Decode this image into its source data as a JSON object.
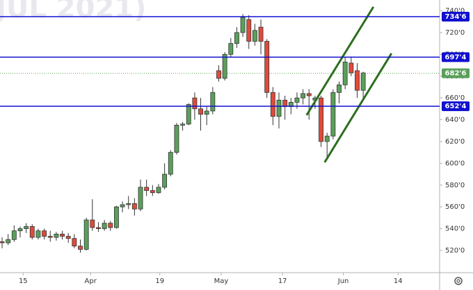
{
  "chart_data": {
    "type": "candlestick",
    "watermark": "JUL 2021)",
    "x": [
      0,
      1,
      2,
      3,
      4,
      5,
      6,
      7,
      8,
      9,
      10,
      11,
      12,
      13,
      14,
      15,
      16,
      17,
      18,
      19,
      20,
      21,
      22,
      23,
      24,
      25,
      26,
      27,
      28,
      29,
      30,
      31,
      32,
      33,
      34,
      35,
      36,
      37,
      38,
      39,
      40,
      41,
      42,
      43,
      44,
      45,
      46,
      47,
      48,
      49,
      50,
      51,
      52,
      53,
      54,
      55,
      56,
      57,
      58,
      59,
      60
    ],
    "open": [
      528,
      527,
      530,
      538,
      540,
      542,
      532,
      538,
      533,
      532,
      535,
      533,
      531,
      524,
      521,
      548,
      541,
      540,
      545,
      541,
      560,
      562,
      563,
      558,
      578,
      575,
      573,
      578,
      590,
      610,
      635,
      636,
      660,
      650,
      645,
      648,
      685,
      678,
      700,
      710,
      720,
      732,
      712,
      725,
      712,
      665,
      643,
      658,
      652,
      656,
      660,
      664,
      658,
      660,
      620,
      625,
      665,
      672,
      692,
      685,
      667
    ],
    "high": [
      532,
      535,
      543,
      542,
      545,
      544,
      540,
      540,
      538,
      537,
      538,
      536,
      535,
      530,
      550,
      567,
      546,
      548,
      547,
      561,
      565,
      570,
      568,
      585,
      585,
      580,
      581,
      600,
      612,
      637,
      638,
      655,
      665,
      660,
      652,
      670,
      690,
      702,
      715,
      725,
      737,
      736,
      728,
      732,
      714,
      670,
      665,
      662,
      660,
      665,
      668,
      668,
      662,
      662,
      628,
      668,
      675,
      697,
      698,
      692,
      684
    ],
    "low": [
      522,
      525,
      528,
      532,
      536,
      530,
      530,
      530,
      528,
      529,
      530,
      527,
      522,
      518,
      520,
      538,
      537,
      538,
      538,
      540,
      555,
      558,
      552,
      556,
      570,
      570,
      572,
      576,
      588,
      608,
      630,
      635,
      640,
      630,
      635,
      645,
      675,
      676,
      697,
      706,
      716,
      705,
      708,
      700,
      660,
      635,
      632,
      640,
      645,
      650,
      654,
      640,
      650,
      615,
      605,
      622,
      655,
      668,
      680,
      660,
      658
    ],
    "close": [
      527,
      530,
      538,
      540,
      542,
      532,
      538,
      533,
      532,
      535,
      533,
      531,
      524,
      521,
      548,
      541,
      540,
      545,
      541,
      560,
      562,
      563,
      558,
      578,
      575,
      573,
      578,
      590,
      610,
      635,
      636,
      654,
      650,
      645,
      648,
      665,
      678,
      700,
      710,
      720,
      734,
      712,
      722,
      712,
      665,
      643,
      658,
      652,
      656,
      660,
      664,
      662,
      660,
      620,
      625,
      665,
      672,
      693,
      683,
      667,
      683
    ],
    "up_color": "#5aa05a",
    "down_color": "#e04a3a",
    "ylim": [
      499.6,
      749.9
    ],
    "yticks": [
      {
        "value": 520,
        "label": "520'0"
      },
      {
        "value": 540,
        "label": "540'0"
      },
      {
        "value": 560,
        "label": "560'0"
      },
      {
        "value": 580,
        "label": "580'0"
      },
      {
        "value": 600,
        "label": "600'0"
      },
      {
        "value": 620,
        "label": "620'0"
      },
      {
        "value": 640,
        "label": "640'0"
      },
      {
        "value": 660,
        "label": "660'0"
      },
      {
        "value": 680,
        "label": "680'0"
      },
      {
        "value": 700,
        "label": "700'0"
      },
      {
        "value": 720,
        "label": "720'0"
      },
      {
        "value": 740,
        "label": "740'0"
      }
    ],
    "xlim": [
      -0.35,
      72.7
    ],
    "xticks": [
      {
        "value": 3.5,
        "label": "15"
      },
      {
        "value": 14.7,
        "label": "Apr"
      },
      {
        "value": 26.2,
        "label": "19"
      },
      {
        "value": 36.4,
        "label": "May"
      },
      {
        "value": 46.6,
        "label": "17"
      },
      {
        "value": 56.7,
        "label": "Jun"
      },
      {
        "value": 65.8,
        "label": "14"
      }
    ],
    "levels": [
      {
        "value": 734.6,
        "label": "734'6",
        "color": "#1010d0",
        "style": "solid"
      },
      {
        "value": 697.4,
        "label": "697'4",
        "color": "#1010d0",
        "style": "solid"
      },
      {
        "value": 652.4,
        "label": "652'4",
        "color": "#1010d0",
        "style": "solid"
      },
      {
        "value": 682.6,
        "label": "682'6",
        "color": "#5aa05a",
        "style": "dotted"
      }
    ],
    "trendlines": [
      {
        "x": [
          50.6,
          61.7
        ],
        "y": [
          644.2,
          743.6
        ],
        "color": "#2d6e1e"
      },
      {
        "x": [
          53.6,
          64.7
        ],
        "y": [
          600.9,
          700.9
        ],
        "color": "#2d6e1e"
      }
    ]
  }
}
